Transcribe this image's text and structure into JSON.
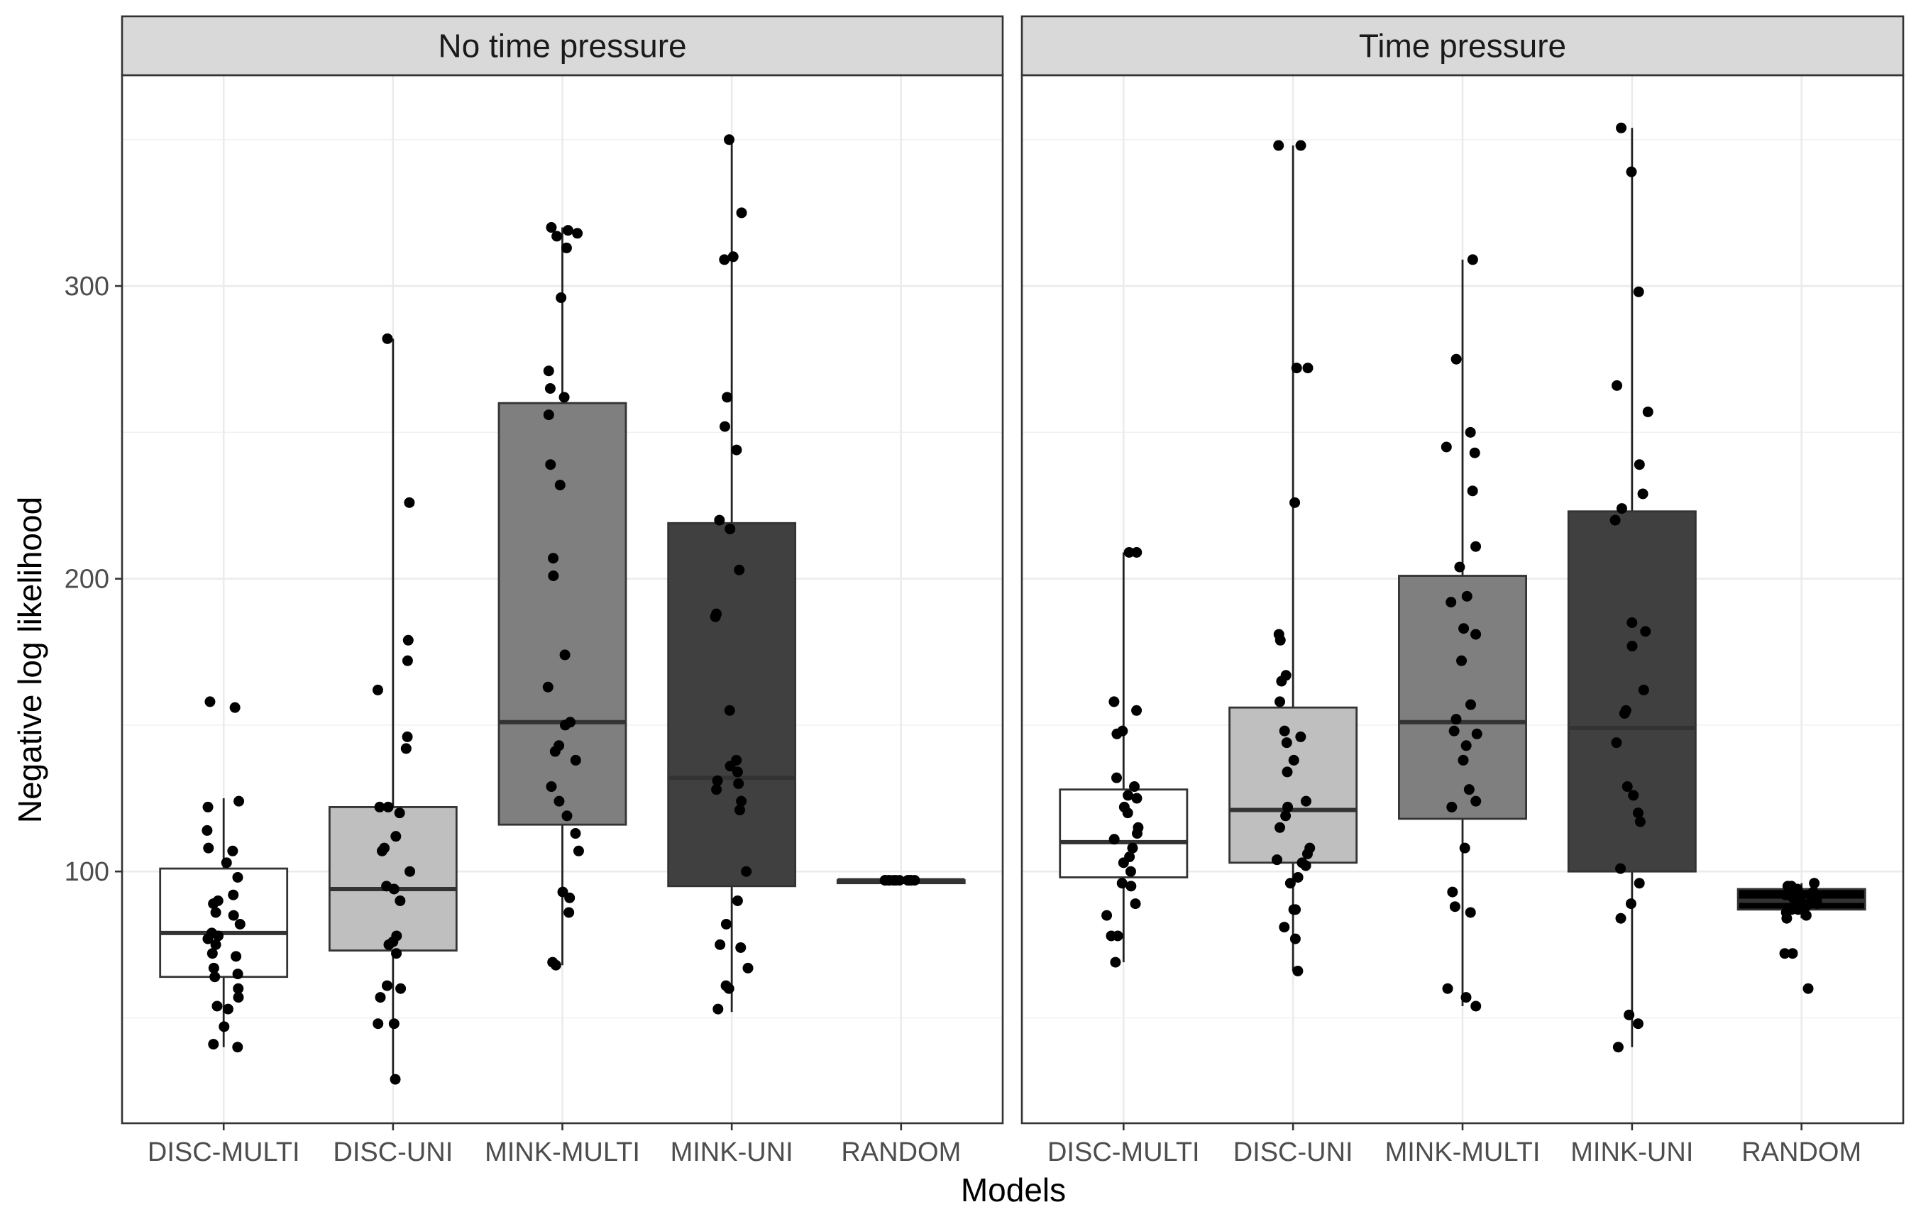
{
  "chart_data": {
    "type": "boxplot",
    "title": "",
    "xlabel": "Models",
    "ylabel": "Negative log likelihood",
    "ylim": [
      14,
      372
    ],
    "yticks": [
      100,
      200,
      300
    ],
    "yminor": [
      50,
      150,
      250,
      350
    ],
    "grid": true,
    "legend": "none",
    "categories": [
      "DISC-MULTI",
      "DISC-UNI",
      "MINK-MULTI",
      "MINK-UNI",
      "RANDOM"
    ],
    "fills": [
      "#ffffff",
      "#bfbfbf",
      "#7f7f7f",
      "#404040",
      "#000000"
    ],
    "panels": [
      {
        "name": "No time pressure",
        "boxes": [
          {
            "q1": 64,
            "median": 79,
            "q3": 101,
            "whisker_low": 40,
            "whisker_high": 125,
            "points": [
              158,
              156,
              124,
              122,
              114,
              108,
              107,
              103,
              98,
              92,
              90,
              89,
              86,
              85,
              82,
              79,
              78,
              77,
              75,
              72,
              71,
              67,
              65,
              64,
              60,
              57,
              54,
              53,
              47,
              41,
              40
            ]
          },
          {
            "q1": 73,
            "median": 94,
            "q3": 122,
            "whisker_low": 28,
            "whisker_high": 282,
            "points": [
              282,
              226,
              179,
              172,
              162,
              146,
              142,
              122,
              122,
              120,
              112,
              108,
              107,
              100,
              95,
              94,
              90,
              78,
              76,
              75,
              72,
              61,
              60,
              57,
              48,
              48,
              29
            ]
          },
          {
            "q1": 116,
            "median": 151,
            "q3": 260,
            "whisker_low": 68,
            "whisker_high": 320,
            "points": [
              320,
              319,
              318,
              317,
              313,
              296,
              271,
              265,
              262,
              256,
              239,
              232,
              207,
              201,
              174,
              163,
              151,
              150,
              143,
              141,
              138,
              129,
              124,
              119,
              113,
              107,
              93,
              91,
              86,
              69,
              68
            ]
          },
          {
            "q1": 95,
            "median": 132,
            "q3": 219,
            "whisker_low": 52,
            "whisker_high": 350,
            "points": [
              350,
              325,
              310,
              309,
              262,
              252,
              244,
              220,
              217,
              203,
              188,
              187,
              155,
              138,
              136,
              134,
              131,
              130,
              128,
              124,
              121,
              100,
              90,
              82,
              75,
              74,
              67,
              61,
              60,
              53
            ]
          },
          {
            "q1": 96,
            "median": 97,
            "q3": 97,
            "whisker_low": 96,
            "whisker_high": 98,
            "points": [
              97,
              97,
              97,
              97,
              97,
              97,
              97,
              97,
              97,
              97,
              97,
              97
            ]
          }
        ]
      },
      {
        "name": "Time pressure",
        "boxes": [
          {
            "q1": 98,
            "median": 110,
            "q3": 128,
            "whisker_low": 69,
            "whisker_high": 209,
            "points": [
              209,
              209,
              158,
              155,
              148,
              147,
              132,
              129,
              126,
              125,
              122,
              120,
              115,
              113,
              111,
              108,
              105,
              103,
              100,
              96,
              95,
              89,
              85,
              78,
              78,
              69
            ]
          },
          {
            "q1": 103,
            "median": 121,
            "q3": 156,
            "whisker_low": 66,
            "whisker_high": 348,
            "points": [
              348,
              348,
              272,
              272,
              226,
              181,
              179,
              167,
              165,
              158,
              148,
              146,
              144,
              138,
              134,
              124,
              122,
              119,
              115,
              108,
              106,
              104,
              103,
              102,
              98,
              96,
              87,
              87,
              81,
              77,
              66
            ]
          },
          {
            "q1": 118,
            "median": 151,
            "q3": 201,
            "whisker_low": 54,
            "whisker_high": 309,
            "points": [
              309,
              275,
              250,
              245,
              243,
              230,
              211,
              204,
              194,
              192,
              183,
              181,
              172,
              157,
              152,
              148,
              147,
              143,
              138,
              128,
              124,
              122,
              108,
              93,
              88,
              86,
              60,
              57,
              54
            ]
          },
          {
            "q1": 100,
            "median": 149,
            "q3": 223,
            "whisker_low": 40,
            "whisker_high": 354,
            "points": [
              354,
              339,
              298,
              266,
              257,
              239,
              229,
              224,
              220,
              185,
              182,
              177,
              162,
              155,
              154,
              144,
              129,
              126,
              120,
              117,
              101,
              96,
              89,
              84,
              51,
              48,
              40
            ]
          },
          {
            "q1": 87,
            "median": 90,
            "q3": 94,
            "whisker_low": 84,
            "whisker_high": 96,
            "points": [
              96,
              95,
              95,
              94,
              94,
              93,
              93,
              92,
              92,
              91,
              91,
              90,
              90,
              89,
              89,
              88,
              88,
              87,
              87,
              86,
              85,
              84,
              72,
              72,
              60
            ]
          }
        ]
      }
    ]
  }
}
